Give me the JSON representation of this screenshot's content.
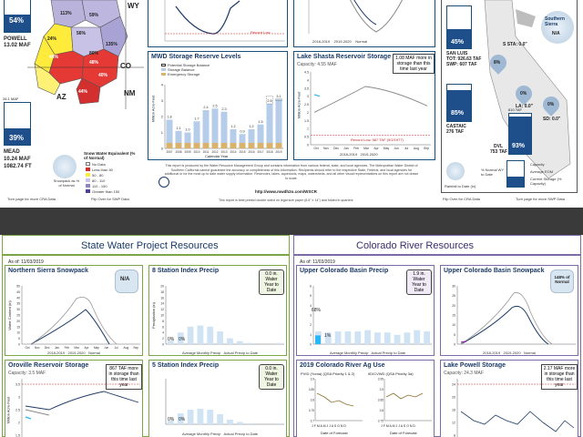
{
  "top": {
    "powell": {
      "pct": "54%",
      "name": "POWELL",
      "cap": "13.02 MAF"
    },
    "mead": {
      "pct": "39%",
      "name": "MEAD",
      "cap1": "10.24 MAF",
      "cap2": "1082.74 FT",
      "top_label": "26.1 MAF"
    },
    "map_pcts": [
      "113%",
      "59%",
      "24%",
      "56%",
      "44%",
      "48%",
      "135%",
      "44%",
      "40%",
      "80%"
    ],
    "map_states": [
      "WY",
      "CO",
      "NM",
      "AZ"
    ],
    "swe_legend": {
      "title": "Snow Water Equivalent (% of Normal)",
      "items": [
        "No Data",
        "Less than 50",
        "50 - 80",
        "80 - 110",
        "110 - 150",
        "Greater than 150"
      ],
      "badge": "Snowpack as % of Normal"
    },
    "footer_left": "Turn page for more CRA Data",
    "footer_mid": "Flip Over for SWP Data",
    "record_low": "Record Low",
    "line_legend": [
      "2018-2019",
      "2019-2020",
      "Normal"
    ],
    "mwd_title": "MWD Storage Reserve Levels",
    "mwd_legend": [
      "Potential Storage Balance",
      "Storage Balance",
      "Emergency Storage"
    ],
    "mwd_ylabel": "Million Acre-Feet",
    "mwd_xlabel": "Calendar Year",
    "mwd_years": [
      "2007",
      "2008",
      "2009",
      "2010",
      "2011",
      "2012",
      "2013",
      "2014",
      "2015",
      "2016",
      "2017",
      "2018",
      "2019"
    ],
    "mwd_values": [
      1.8,
      1.1,
      1.0,
      1.7,
      2.4,
      2.5,
      2.3,
      1.2,
      0.9,
      1.2,
      1.5,
      2.8,
      3.1
    ],
    "mwd_labels": [
      "1.8",
      "1.1",
      "1.0",
      "1.7",
      "2.4",
      "2.5",
      "2.3",
      "1.2",
      "0.9",
      "1.2",
      "1.5",
      "2.8",
      "3.1"
    ],
    "mwd_potential": [
      null,
      null,
      null,
      null,
      null,
      null,
      null,
      null,
      null,
      null,
      null,
      3.3,
      3.1
    ],
    "shasta_title": "Lake Shasta Reservoir Storage",
    "shasta_cap": "Capacity: 4.55 MAF",
    "shasta_callout": "1.08 MAF more in storage than this time last year",
    "shasta_record": "Record Low: 587 TAF (9/2/1977)",
    "shasta_ylabel": "Million Acre-Feet",
    "shasta_ticks": [
      "4.5",
      "4",
      "3.5",
      "3",
      "2.5",
      "2",
      "1.5",
      "1",
      "0.5",
      "0"
    ],
    "shasta_months": [
      "Oct",
      "Nov",
      "Dec",
      "Jan",
      "Feb",
      "Mar",
      "Apr",
      "May",
      "Jun",
      "Jul",
      "Aug",
      "Sep"
    ],
    "disclaimer": "This report is produced by the Water Resource Management Group and contains information from various federal, state, and local agencies. The Metropolitan Water District of Southern California cannot guarantee the accuracy or completeness of this information. Recipients should refer to the respective State, Federal, and local agencies for additional or for the most up to date water supply information. Reservoirs, lakes, aqueducts, maps, watersheds, and all other visual representations on this report are not drawn to scale.",
    "website": "http://www.mwdh2o.com/WSCR",
    "print_note": "This report is best printed double sided on legal size paper (8.5\" x 14\") and folded in quarters",
    "sanluis": {
      "pct": "45%",
      "name": "SAN LUIS",
      "tot": "TOT: 926.63 TAF",
      "swp": "SWP: 607 TAF",
      "sta": "S STA: 0.0\""
    },
    "castaic": {
      "pct": "85%",
      "name": "CASTAIC",
      "cap": "276 TAF"
    },
    "dvl": {
      "pct": "93%",
      "name": "DVL",
      "cap": "753 TAF",
      "top": "810 TAF"
    },
    "sierra": {
      "label": "Southern Sierra",
      "pct": "N/A"
    },
    "la": "LA: 0.0\"",
    "sd": "SD: 0.0\"",
    "map_pcts_right": [
      "8%",
      "0%",
      "0%",
      "0%"
    ],
    "right_legend": [
      "% Normal WY to Date",
      "Rainfall to Date (in)",
      "Capacity",
      "Average EOM",
      "Current Storage (% Capacity)"
    ],
    "right_footer_left": "Flip Over for CRA Data",
    "right_footer_right": "Turn page for more SWP Data"
  },
  "swp": {
    "header": "State Water Project Resources",
    "asof": "As of: 11/03/2019",
    "northern_title": "Northern Sierra Snowpack",
    "northern_badge": "N/A",
    "northern_ylabel": "Water Content (in)",
    "northern_ticks": [
      "50",
      "45",
      "40",
      "35",
      "30",
      "25",
      "20",
      "15",
      "10",
      "5",
      "0"
    ],
    "northern_months": [
      "Oct",
      "Nov",
      "Dec",
      "Jan",
      "Feb",
      "Mar",
      "Apr",
      "May",
      "Jun",
      "Jul",
      "Aug",
      "Sep"
    ],
    "eight_title": "8 Station Index Precip",
    "eight_callout": "0.0 in. Water Year to Date",
    "eight_ylabel": "Precipitation (in)",
    "eight_ticks": [
      "20",
      "18",
      "16",
      "14",
      "12",
      "10",
      "8",
      "6",
      "4",
      "2",
      "0"
    ],
    "eight_pcts": [
      "0%",
      "0%"
    ],
    "oroville_title": "Oroville Reservoir Storage",
    "oroville_cap": "Capacity: 3.5 MAF",
    "oroville_callout": "867 TAF more in storage than this time last year",
    "oroville_ylabel": "Million Acre-Feet",
    "oroville_ticks": [
      "3.5",
      "3",
      "2.5",
      "2",
      "1.5"
    ],
    "five_title": "5 Station Index Precip",
    "five_callout": "0.0 in. Water Year to Date",
    "five_pcts": [
      "0%",
      "0%"
    ],
    "precip_legend": [
      "Average Monthly Precip",
      "Actual Precip to Date"
    ],
    "line_legend": [
      "2018-2019",
      "2019-2020",
      "Normal"
    ]
  },
  "cr": {
    "header": "Colorado River Resources",
    "asof": "As of: 11/03/2019",
    "upper_precip_title": "Upper Colorado Basin Precip",
    "upper_precip_callout": "1.9 in. Water Year to Date",
    "upper_precip_pcts": [
      "68%",
      "1%"
    ],
    "upper_precip_ticks": [
      "6",
      "5",
      "4",
      "3",
      "2",
      "1",
      "0"
    ],
    "upper_snow_title": "Upper Colorado Basin Snowpack",
    "upper_snow_badge": "148% of Normal",
    "upper_snow_ticks": [
      "30",
      "25",
      "20",
      "15",
      "10",
      "5",
      "0"
    ],
    "agri_title": "2019 Colorado River Ag Use",
    "pvid": "PVID (Yuma) (QSA Priority 1 & 2)",
    "iid": "IID/CVWD (QSA Priority 3a)",
    "pvid_ticks": [
      "3.9",
      "3.85",
      "3.8",
      "3.75",
      "3.7"
    ],
    "iid_ticks": [
      "3.95",
      "3.9",
      "3.85",
      "3.8",
      "3.75"
    ],
    "agri_months": "J F M A M J J A S O N D",
    "agri_xlabel": "Date of Forecast",
    "powell_title": "Lake Powell Storage",
    "powell_cap": "Capacity: 24.3 MAF",
    "powell_callout": "2.17 MAF more in storage than this time last year",
    "powell_ticks": [
      "24",
      "20",
      "16",
      "12",
      "8"
    ],
    "precip_legend": [
      "Average Monthly Precip",
      "Actual Precip to Date"
    ],
    "line_legend": [
      "2018-2019",
      "2019-2020",
      "Normal"
    ]
  }
}
